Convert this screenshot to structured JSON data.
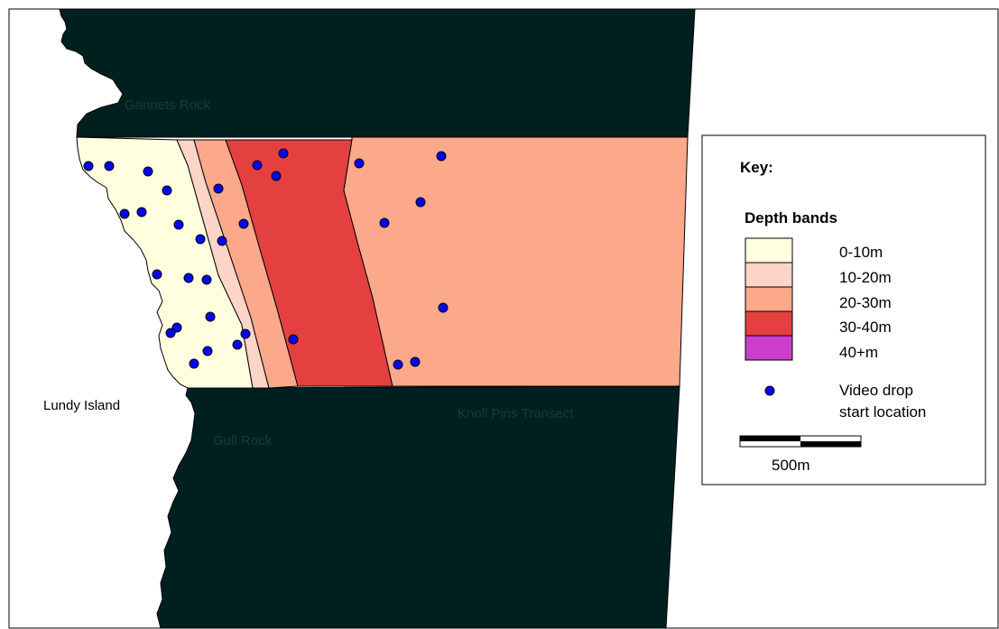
{
  "labels": {
    "gannets_rock": "Gannets Rock",
    "lundy_island": "Lundy Island",
    "gull_rock": "Gull Rock",
    "transect": "Knoll Pins Transect"
  },
  "key": {
    "title": "Key:",
    "depth_title": "Depth bands",
    "bands": [
      {
        "label": "0-10m",
        "color": "#ffffe0"
      },
      {
        "label": "10-20m",
        "color": "#fdd5c8"
      },
      {
        "label": "20-30m",
        "color": "#fca98b"
      },
      {
        "label": "30-40m",
        "color": "#e54040"
      },
      {
        "label": "40+m",
        "color": "#cc3dcc"
      }
    ],
    "video_drop_line1": "Video drop",
    "video_drop_line2": "start location",
    "scale_label": "500m"
  },
  "colors": {
    "land": "#002020",
    "dot": "#0000ff"
  }
}
